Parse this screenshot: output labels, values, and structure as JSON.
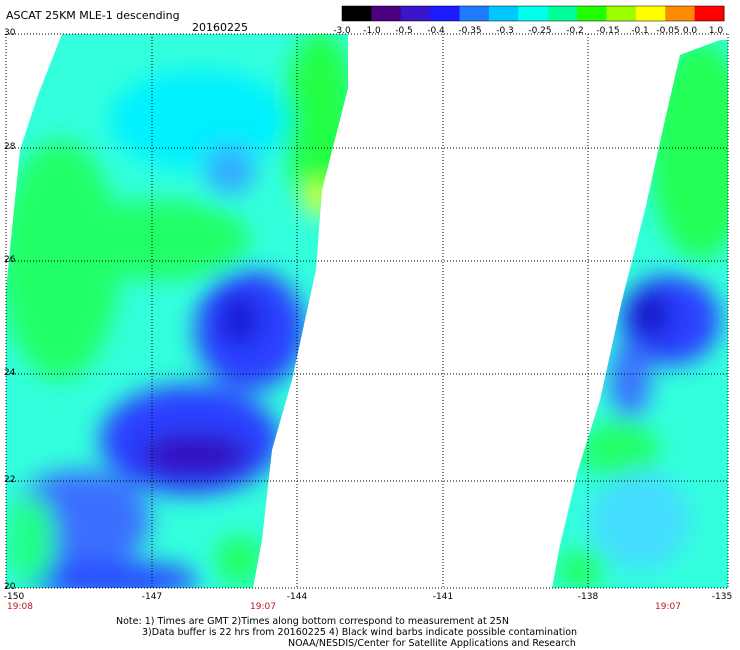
{
  "title": "ASCAT 25KM MLE-1 descending",
  "date": "20160225",
  "colorbar": {
    "labels": [
      "-3.0",
      "-1.0",
      "-0.5",
      "-0.4",
      "-0.35",
      "-0.3",
      "-0.25",
      "-0.2",
      "-0.15",
      "-0.1",
      "-0.05",
      "0.0",
      "1.0"
    ],
    "colors": [
      "#000000",
      "#4b0082",
      "#3a14c8",
      "#1b1bff",
      "#1e7bff",
      "#00c8ff",
      "#00ffee",
      "#00ff9a",
      "#22ff00",
      "#9cff00",
      "#ffff00",
      "#ff8c00",
      "#ff0000"
    ]
  },
  "y_axis": {
    "labels": [
      "30",
      "28",
      "26",
      "24",
      "22",
      "20"
    ]
  },
  "x_axis": {
    "labels": [
      "-150",
      "-147",
      "-144",
      "-141",
      "-138",
      "-135"
    ]
  },
  "time_labels": [
    "19:08",
    "19:07",
    "19:07"
  ],
  "notes": {
    "line1": "Note: 1) Times are GMT 2)Times along bottom correspond to measurement at 25N",
    "line2": "3)Data buffer is 22 hrs from 20160225 4) Black wind barbs indicate possible contamination",
    "line3": "NOAA/NESDIS/Center for Satellite Applications and Research"
  }
}
